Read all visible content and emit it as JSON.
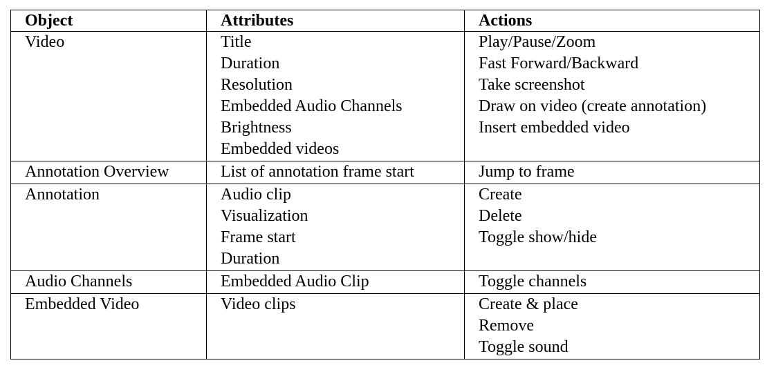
{
  "headers": [
    "Object",
    "Attributes",
    "Actions"
  ],
  "rows": [
    {
      "object": "Video",
      "attributes": [
        "Title",
        "Duration",
        "Resolution",
        "Embedded Audio Channels",
        "Brightness",
        "Embedded videos"
      ],
      "actions": [
        "Play/Pause/Zoom",
        "Fast Forward/Backward",
        "Take screenshot",
        "Draw on video (create annotation)",
        "Insert embedded video"
      ]
    },
    {
      "object": "Annotation Overview",
      "attributes": [
        "List of annotation frame start"
      ],
      "actions": [
        "Jump to frame"
      ]
    },
    {
      "object": "Annotation",
      "attributes": [
        "Audio clip",
        "Visualization",
        "Frame start",
        "Duration"
      ],
      "actions": [
        "Create",
        "Delete",
        "Toggle show/hide"
      ]
    },
    {
      "object": "Audio Channels",
      "attributes": [
        "Embedded Audio Clip"
      ],
      "actions": [
        "Toggle channels"
      ]
    },
    {
      "object": "Embedded Video",
      "attributes": [
        "Video clips"
      ],
      "actions": [
        "Create & place",
        "Remove",
        "Toggle sound"
      ]
    }
  ]
}
